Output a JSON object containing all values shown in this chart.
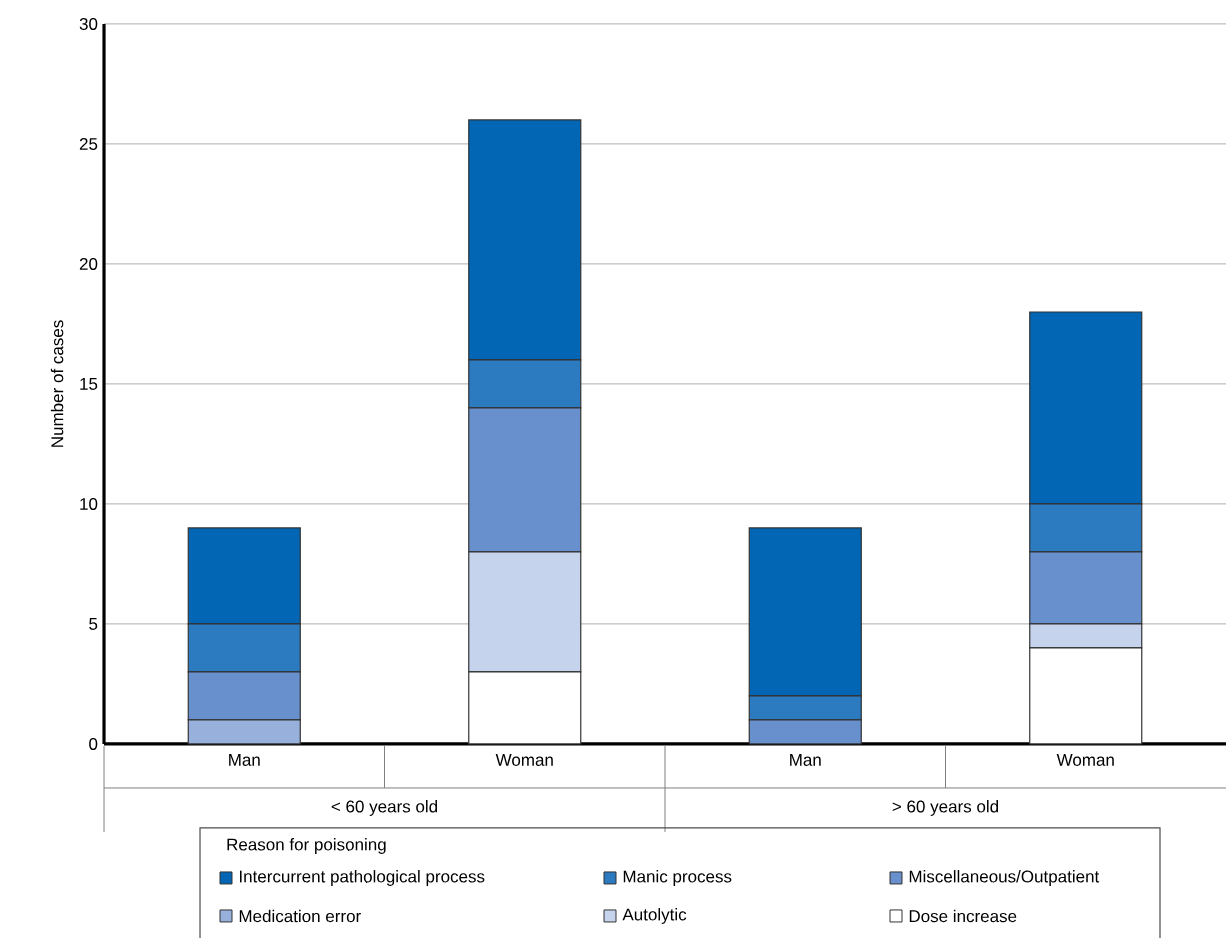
{
  "chart_data": {
    "type": "bar",
    "stacked": true,
    "ylabel": "Number of cases",
    "legend_title": "Reason for poisoning",
    "categories": [
      "Man",
      "Woman",
      "Man",
      "Woman"
    ],
    "annotations": [
      "< 60 years old",
      "> 60 years old"
    ],
    "series": [
      {
        "name": "Dose increase",
        "color": "#ffffff",
        "values": [
          0,
          3,
          0,
          4
        ]
      },
      {
        "name": "Autolytic",
        "color": "#c6d3ec",
        "values": [
          0,
          5,
          0,
          1
        ]
      },
      {
        "name": "Medication error",
        "color": "#98b0dc",
        "values": [
          1,
          0,
          0,
          0
        ]
      },
      {
        "name": "Miscellaneous/Outpatient",
        "color": "#6890cc",
        "values": [
          2,
          6,
          1,
          3
        ]
      },
      {
        "name": "Manic process",
        "color": "#2c7ac0",
        "values": [
          2,
          2,
          1,
          2
        ]
      },
      {
        "name": "Intercurrent pathological process",
        "color": "#0366b4",
        "values": [
          4,
          10,
          7,
          8
        ]
      }
    ],
    "ylim": [
      0,
      30
    ],
    "yticks": [
      0,
      5,
      10,
      15,
      20,
      25,
      30
    ],
    "grid": "y",
    "legend": "bottom"
  }
}
